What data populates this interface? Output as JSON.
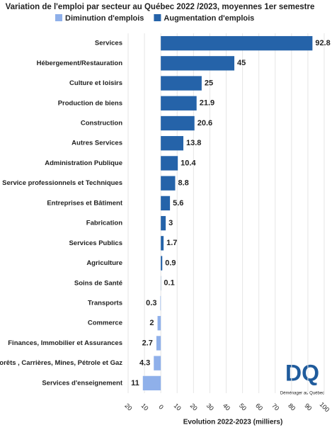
{
  "chart_data": {
    "type": "hbar",
    "title": "Variation de l'emploi par secteur au Québec 2022 /2023, moyennes 1er semestre",
    "x_label": "Evolution 2022-2023 (milliers)",
    "categories": [
      "Services",
      "Hébergement/Restauration",
      "Culture et loisirs",
      "Production de biens",
      "Construction",
      "Autres Services",
      "Administration Publique",
      "Service professionnels et Techniques",
      "Entreprises et Bâtiment",
      "Fabrication",
      "Services Publics",
      "Agriculture",
      "Soins de Santé",
      "Transports",
      "Commerce",
      "Finances, Immobilier et Assurances",
      "Forêts , Carrières, Mines, Pétrole et Gaz",
      "Services d'enseignement"
    ],
    "series": [
      {
        "name": "Diminution d'emplois",
        "color": "#8fb0ea",
        "values": [
          null,
          null,
          null,
          null,
          null,
          null,
          null,
          null,
          null,
          null,
          null,
          null,
          null,
          -0.3,
          -2,
          -2.7,
          -4.3,
          -11
        ],
        "value_labels": [
          null,
          null,
          null,
          null,
          null,
          null,
          null,
          null,
          null,
          null,
          null,
          null,
          null,
          "0.3",
          "2",
          "2.7",
          "4.3",
          "11"
        ]
      },
      {
        "name": "Augmentation d'emplois",
        "color": "#2563a9",
        "values": [
          92.8,
          45,
          25,
          21.9,
          20.6,
          13.8,
          10.4,
          8.8,
          5.6,
          3,
          1.7,
          0.9,
          0.1,
          null,
          null,
          null,
          null,
          null
        ]
      }
    ],
    "xlim": [
      -20,
      100
    ],
    "xticks": [
      {
        "value": -20,
        "label": "20"
      },
      {
        "value": -10,
        "label": "10"
      },
      0,
      10,
      20,
      30,
      40,
      50,
      60,
      70,
      80,
      90,
      100
    ],
    "grid": true
  },
  "logo": {
    "text": "DQ",
    "caption": "Déménager au Québec"
  }
}
